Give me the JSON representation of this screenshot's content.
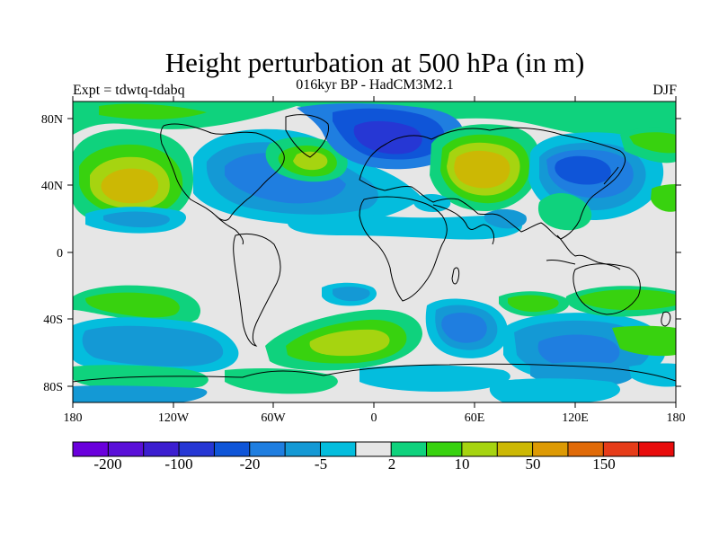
{
  "title": "Height perturbation at 500 hPa (in m)",
  "subtitle": "016kyr BP - HadCM3M2.1",
  "left_annotation": "Expt = tdwtq-tdabq",
  "right_annotation": "DJF",
  "latitude_ticks": [
    "80N",
    "40N",
    "0",
    "40S",
    "80S"
  ],
  "longitude_ticks": [
    "180",
    "120W",
    "60W",
    "0",
    "60E",
    "120E",
    "180"
  ],
  "colorbar": {
    "colors": [
      "#6a00dc",
      "#5a10d8",
      "#3c1ed0",
      "#2637d4",
      "#0f55d8",
      "#1f7ee0",
      "#1499d5",
      "#04bddd",
      "#e6e6e6",
      "#0fd27d",
      "#38d20f",
      "#a6d410",
      "#ccb804",
      "#dd9a04",
      "#e06a08",
      "#e63c19",
      "#e80c0c"
    ],
    "tick_labels": [
      "-200",
      "-100",
      "-20",
      "-5",
      "2",
      "10",
      "50",
      "150"
    ]
  },
  "colors": {
    "ocean_neutral": "#e6e6e6",
    "coastline": "#000000"
  }
}
